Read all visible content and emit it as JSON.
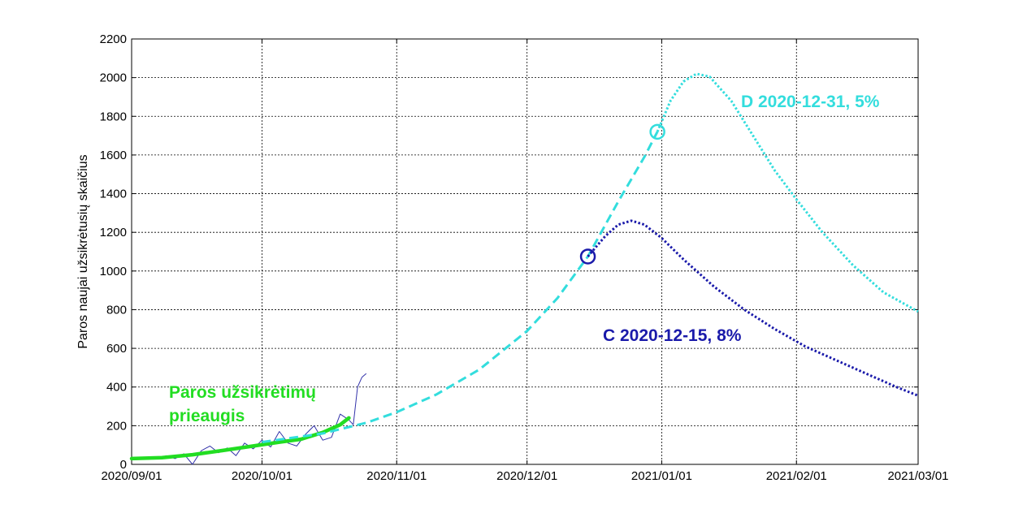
{
  "chart_data": {
    "type": "line",
    "ylabel": "Paros naujai užsikrėtusių skaičius",
    "xlabel": "",
    "x_ticks": [
      "2020/09/01",
      "2020/10/01",
      "2020/11/01",
      "2020/12/01",
      "2021/01/01",
      "2021/02/01",
      "2021/03/01"
    ],
    "y_ticks": [
      "0",
      "200",
      "400",
      "600",
      "800",
      "1000",
      "1200",
      "1400",
      "1600",
      "1800",
      "2000",
      "2200"
    ],
    "xlim": [
      "2020-09-01",
      "2021-03-01"
    ],
    "ylim": [
      0,
      2200
    ],
    "grid": true,
    "annotations": {
      "green": {
        "line1": "Paros užsikrėtimų",
        "line2": "prieaugis",
        "color": "#22dd22"
      },
      "d": {
        "text": "D 2020-12-31, 5%",
        "color": "#33dddd"
      },
      "c": {
        "text": "C 2020-12-15, 8%",
        "color": "#1a1aaa"
      }
    },
    "series": [
      {
        "style": "thin-solid",
        "color": "#3333aa",
        "points": [
          [
            "2020-09-01",
            35
          ],
          [
            "2020-09-03",
            25
          ],
          [
            "2020-09-05",
            40
          ],
          [
            "2020-09-07",
            30
          ],
          [
            "2020-09-09",
            45
          ],
          [
            "2020-09-11",
            30
          ],
          [
            "2020-09-13",
            55
          ],
          [
            "2020-09-15",
            0
          ],
          [
            "2020-09-17",
            70
          ],
          [
            "2020-09-19",
            95
          ],
          [
            "2020-09-21",
            60
          ],
          [
            "2020-09-23",
            85
          ],
          [
            "2020-09-25",
            45
          ],
          [
            "2020-09-27",
            110
          ],
          [
            "2020-09-29",
            80
          ],
          [
            "2020-10-01",
            125
          ],
          [
            "2020-10-03",
            90
          ],
          [
            "2020-10-05",
            170
          ],
          [
            "2020-10-07",
            110
          ],
          [
            "2020-10-09",
            95
          ],
          [
            "2020-10-11",
            155
          ],
          [
            "2020-10-13",
            200
          ],
          [
            "2020-10-15",
            125
          ],
          [
            "2020-10-17",
            140
          ],
          [
            "2020-10-19",
            260
          ],
          [
            "2020-10-21",
            230
          ],
          [
            "2020-10-22",
            205
          ],
          [
            "2020-10-23",
            400
          ],
          [
            "2020-10-24",
            450
          ],
          [
            "2020-10-25",
            470
          ]
        ]
      },
      {
        "style": "thick-solid",
        "color": "#22dd22",
        "points": [
          [
            "2020-09-01",
            30
          ],
          [
            "2020-09-08",
            35
          ],
          [
            "2020-09-15",
            50
          ],
          [
            "2020-09-22",
            72
          ],
          [
            "2020-09-29",
            95
          ],
          [
            "2020-10-05",
            115
          ],
          [
            "2020-10-10",
            130
          ],
          [
            "2020-10-15",
            165
          ],
          [
            "2020-10-19",
            205
          ],
          [
            "2020-10-21",
            240
          ]
        ]
      },
      {
        "style": "dashed",
        "color": "#33dddd",
        "points": [
          [
            "2020-10-01",
            115
          ],
          [
            "2020-10-15",
            160
          ],
          [
            "2020-10-25",
            215
          ],
          [
            "2020-11-01",
            270
          ],
          [
            "2020-11-10",
            360
          ],
          [
            "2020-11-20",
            490
          ],
          [
            "2020-12-01",
            690
          ],
          [
            "2020-12-08",
            860
          ],
          [
            "2020-12-15",
            1075
          ],
          [
            "2020-12-22",
            1360
          ],
          [
            "2020-12-28",
            1590
          ],
          [
            "2020-12-31",
            1720
          ]
        ]
      },
      {
        "style": "dotted",
        "color": "#33dddd",
        "points": [
          [
            "2020-12-31",
            1720
          ],
          [
            "2021-01-03",
            1880
          ],
          [
            "2021-01-06",
            1980
          ],
          [
            "2021-01-09",
            2020
          ],
          [
            "2021-01-12",
            2005
          ],
          [
            "2021-01-17",
            1880
          ],
          [
            "2021-01-22",
            1700
          ],
          [
            "2021-01-27",
            1520
          ],
          [
            "2021-02-01",
            1370
          ],
          [
            "2021-02-07",
            1200
          ],
          [
            "2021-02-14",
            1030
          ],
          [
            "2021-02-21",
            890
          ],
          [
            "2021-03-01",
            790
          ]
        ]
      },
      {
        "style": "dotted",
        "color": "#1a1aaa",
        "points": [
          [
            "2020-12-15",
            1075
          ],
          [
            "2020-12-19",
            1180
          ],
          [
            "2020-12-22",
            1240
          ],
          [
            "2020-12-25",
            1260
          ],
          [
            "2020-12-28",
            1240
          ],
          [
            "2021-01-01",
            1170
          ],
          [
            "2021-01-06",
            1060
          ],
          [
            "2021-01-13",
            920
          ],
          [
            "2021-01-20",
            800
          ],
          [
            "2021-01-27",
            700
          ],
          [
            "2021-02-03",
            610
          ],
          [
            "2021-02-10",
            540
          ],
          [
            "2021-02-17",
            470
          ],
          [
            "2021-02-24",
            400
          ],
          [
            "2021-03-01",
            355
          ]
        ]
      }
    ],
    "markers": [
      {
        "x": "2020-12-15",
        "y": 1075,
        "color": "#1a1aaa",
        "shape": "circle"
      },
      {
        "x": "2020-12-31",
        "y": 1720,
        "color": "#33dddd",
        "shape": "circle"
      }
    ]
  }
}
